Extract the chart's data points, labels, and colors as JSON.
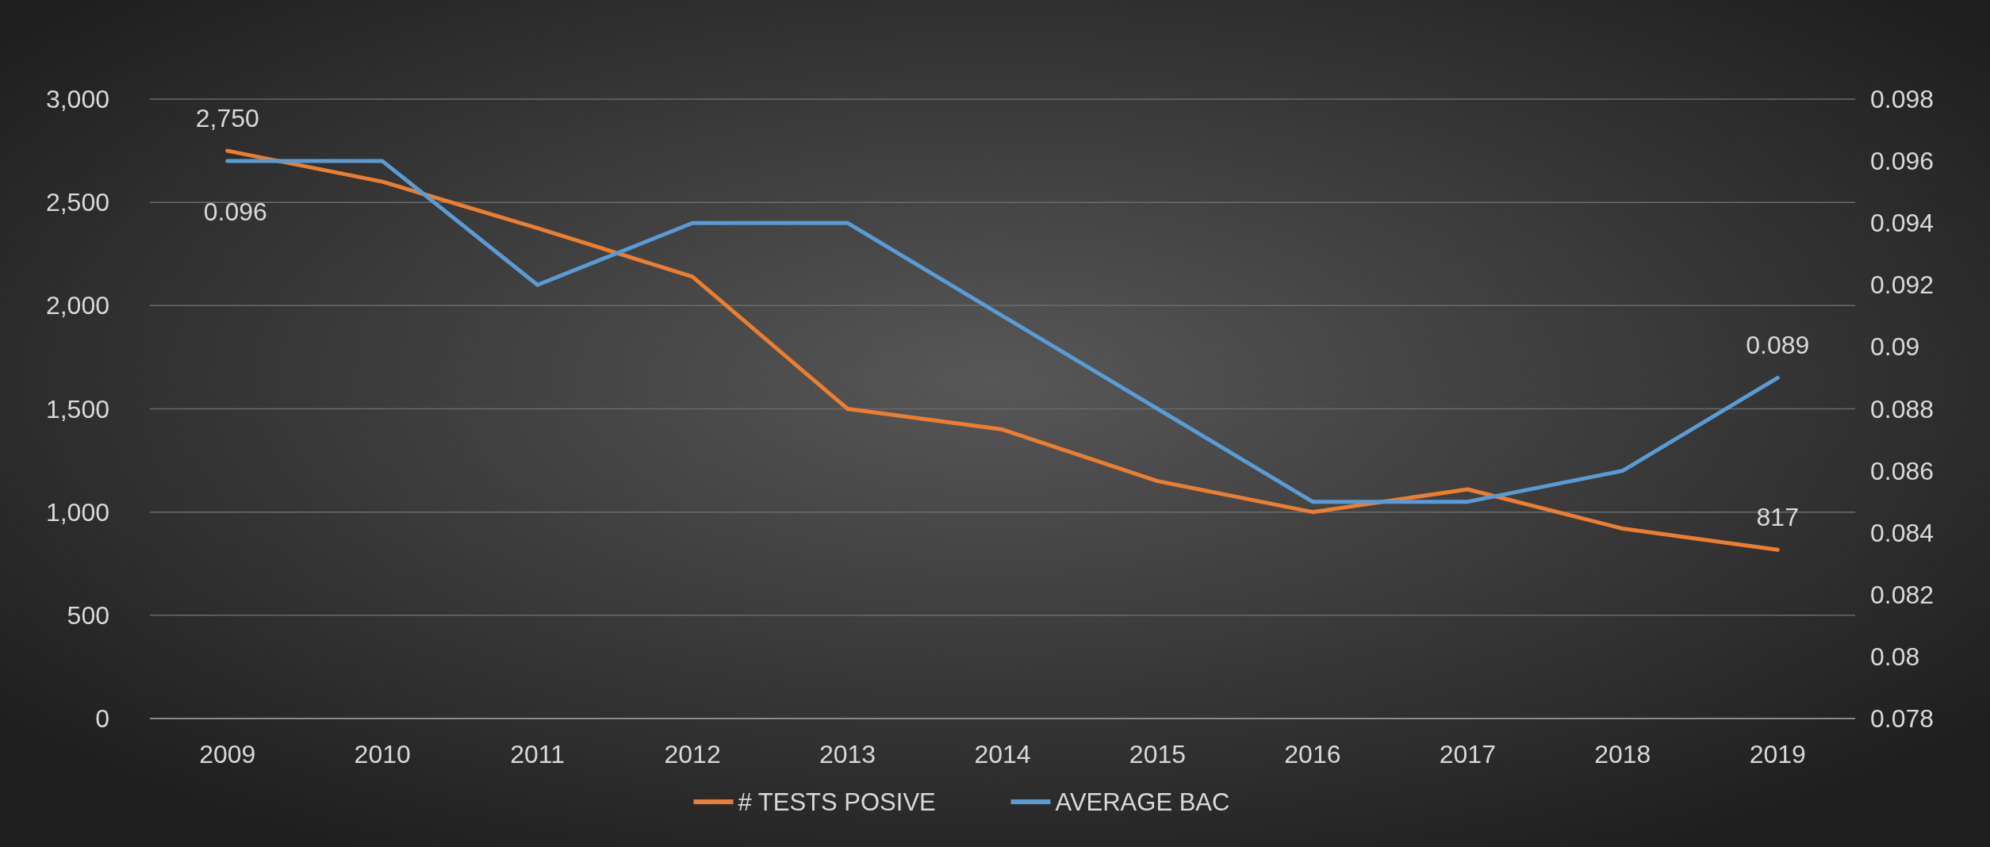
{
  "chart_data": {
    "type": "line",
    "categories": [
      "2009",
      "2010",
      "2011",
      "2012",
      "2013",
      "2014",
      "2015",
      "2016",
      "2017",
      "2018",
      "2019"
    ],
    "series": [
      {
        "name": "# TESTS POSIVE",
        "color": "#ed7d31",
        "values": [
          2750,
          2600,
          2375,
          2140,
          1500,
          1400,
          1150,
          1000,
          1110,
          920,
          817
        ],
        "value_labels": [
          "2,750",
          null,
          null,
          null,
          null,
          null,
          null,
          null,
          null,
          null,
          "817"
        ]
      },
      {
        "name": "AVERAGE BAC",
        "color": "#5b9bd5",
        "axis": "y2",
        "values": [
          0.096,
          0.096,
          0.092,
          0.094,
          0.094,
          0.091,
          0.088,
          0.085,
          0.085,
          0.086,
          0.089
        ],
        "value_labels": [
          "0.096",
          null,
          null,
          null,
          null,
          null,
          null,
          null,
          null,
          null,
          "0.089"
        ]
      }
    ],
    "ylim": [
      0,
      3000
    ],
    "yticks": [
      {
        "value": 0,
        "label": "0"
      },
      {
        "value": 500,
        "label": "500"
      },
      {
        "value": 1000,
        "label": "1,000"
      },
      {
        "value": 1500,
        "label": "1,500"
      },
      {
        "value": 2000,
        "label": "2,000"
      },
      {
        "value": 2500,
        "label": "2,500"
      },
      {
        "value": 3000,
        "label": "3,000"
      }
    ],
    "y2lim": [
      0.078,
      0.098
    ],
    "y2ticks": [
      0.078,
      0.08,
      0.082,
      0.084,
      0.086,
      0.088,
      0.09,
      0.092,
      0.094,
      0.096,
      0.098
    ],
    "grid": "y",
    "legend": "bottom",
    "marker": "none",
    "line_style": "solid"
  }
}
